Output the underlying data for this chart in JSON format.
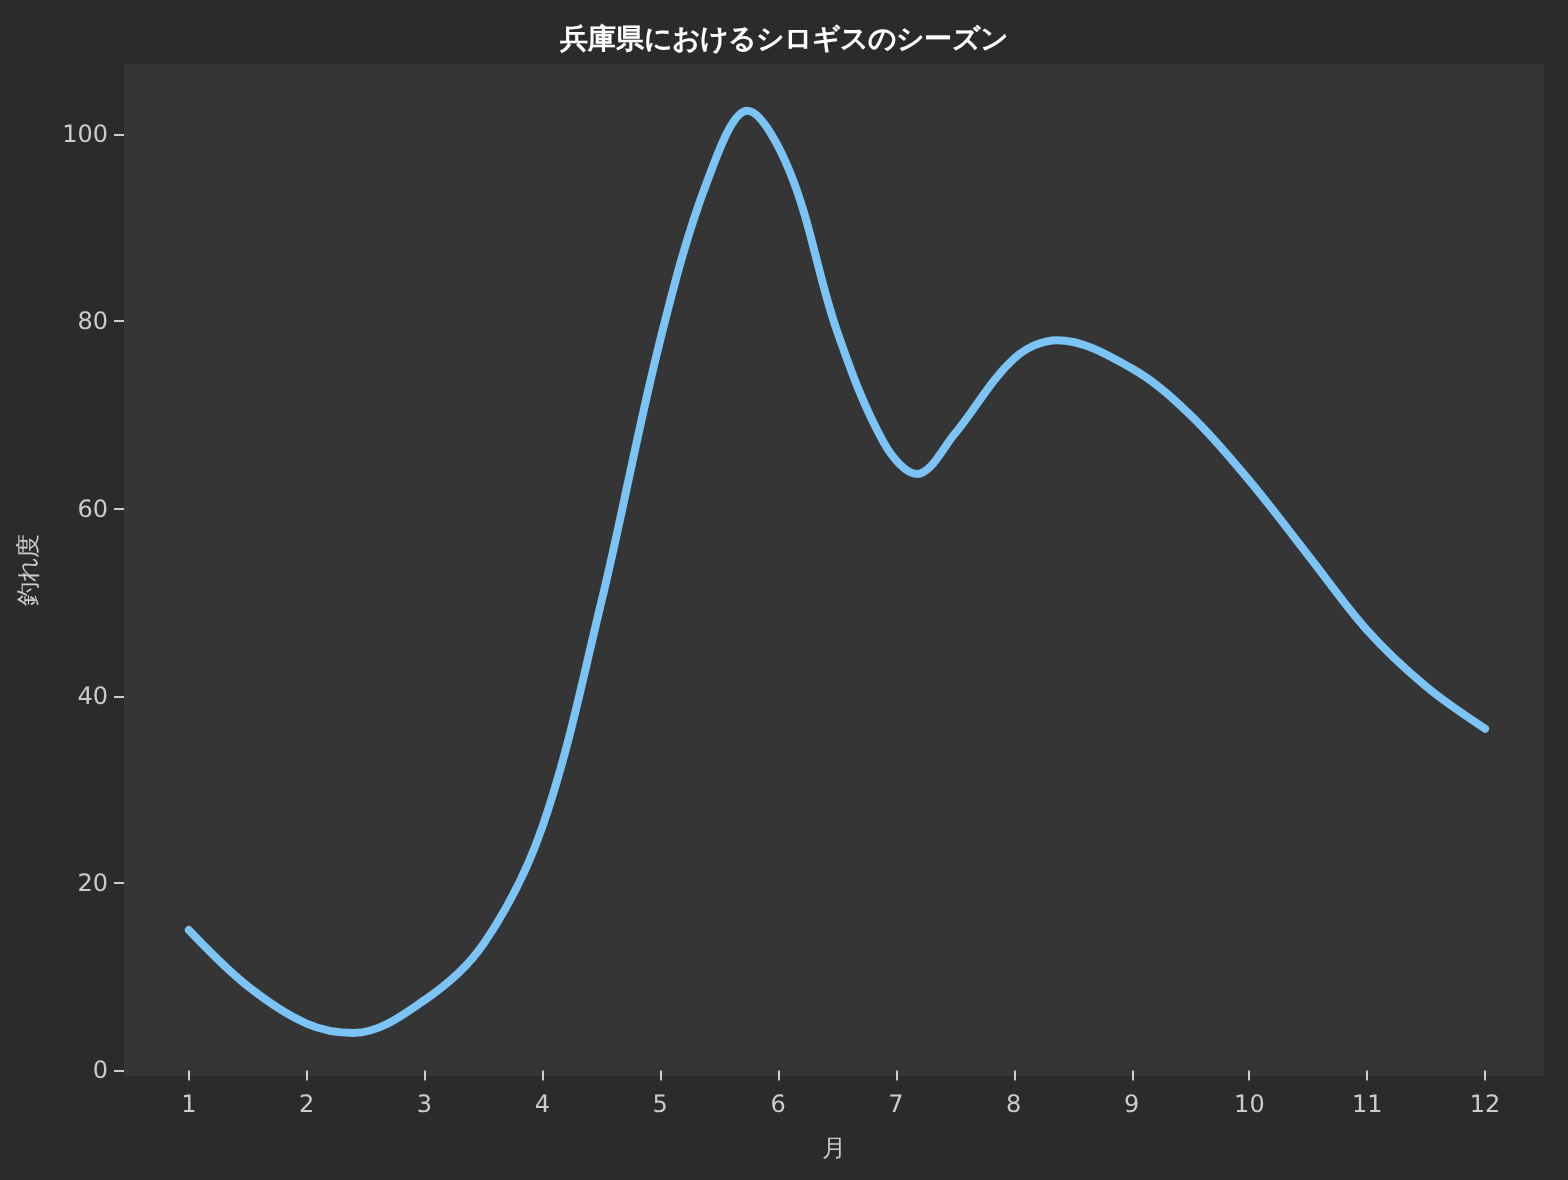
{
  "chart_data": {
    "type": "line",
    "title": "兵庫県におけるシロギスのシーズン",
    "xlabel": "月",
    "ylabel": "釣れ度",
    "series": [
      {
        "color": "#7cc4f5",
        "x": [
          1,
          1.5,
          2,
          2.4,
          3,
          3.5,
          4,
          4.5,
          5,
          5.4,
          5.74,
          6.1,
          6.5,
          6.9,
          7.18,
          7.5,
          8,
          8.37,
          9,
          9.5,
          10,
          10.5,
          11,
          11.5,
          12
        ],
        "values": [
          15,
          9,
          5,
          4,
          7.5,
          13.5,
          26,
          50,
          78,
          95,
          102.5,
          96,
          79,
          67,
          63.7,
          68,
          76,
          78,
          75,
          70,
          63,
          55,
          47,
          41,
          36.5
        ]
      }
    ],
    "xlim": [
      0.45,
      12.5
    ],
    "xticks": [
      1,
      2,
      3,
      4,
      5,
      6,
      7,
      8,
      9,
      10,
      11,
      12
    ],
    "ylim": [
      -0.6,
      107.5
    ],
    "yticks": [
      0,
      20,
      40,
      60,
      80,
      100
    ],
    "marker": "none",
    "line_style": "solid"
  }
}
